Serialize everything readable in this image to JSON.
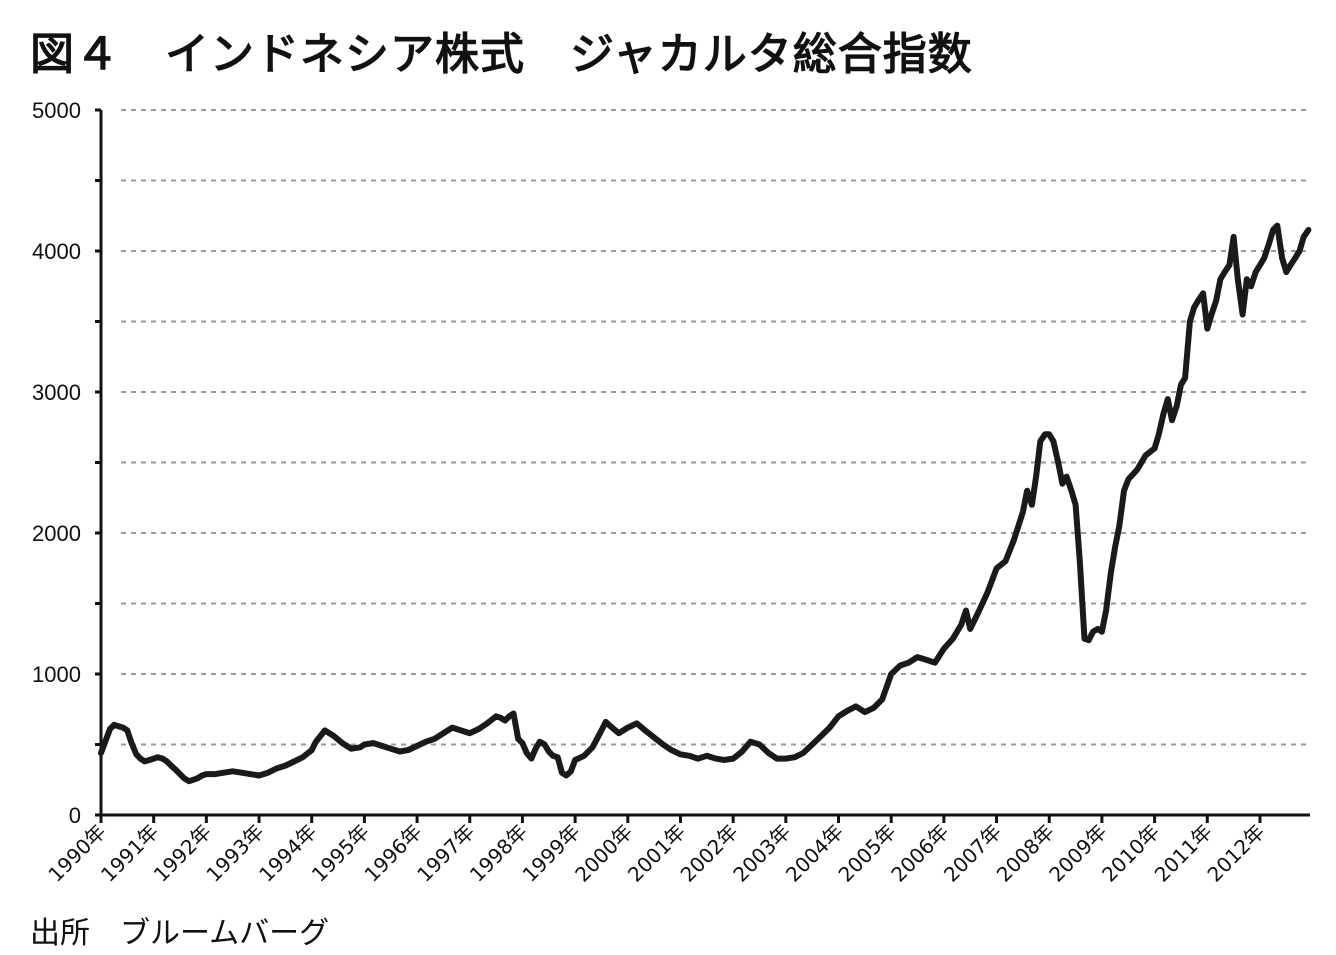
{
  "title": "図４　インドネシア株式　ジャカルタ総合指数",
  "source": "出所　ブルームバーグ",
  "chart_data": {
    "type": "line",
    "title": "図４　インドネシア株式　ジャカルタ総合指数",
    "xlabel": "",
    "ylabel": "",
    "ylim": [
      0,
      5000
    ],
    "xlim": [
      1990.0,
      2012.95
    ],
    "yticks": [
      0,
      1000,
      2000,
      3000,
      4000,
      5000
    ],
    "ytick_labels": [
      "0",
      "1000",
      "2000",
      "3000",
      "4000",
      "5000"
    ],
    "xticks": [
      1990,
      1991,
      1992,
      1993,
      1994,
      1995,
      1996,
      1997,
      1998,
      1999,
      2000,
      2001,
      2002,
      2003,
      2004,
      2005,
      2006,
      2007,
      2008,
      2009,
      2010,
      2011,
      2012
    ],
    "xtick_labels": [
      "1990年",
      "1991年",
      "1992年",
      "1993年",
      "1994年",
      "1995年",
      "1996年",
      "1997年",
      "1998年",
      "1999年",
      "2000年",
      "2001年",
      "2002年",
      "2003年",
      "2004年",
      "2005年",
      "2006年",
      "2007年",
      "2008年",
      "2009年",
      "2010年",
      "2011年",
      "2012年"
    ],
    "grid": "horizontal-dashed",
    "line_color": "#1a1a1a",
    "series": [
      {
        "x": [
          1990.0,
          1990.08,
          1990.17,
          1990.25,
          1990.33,
          1990.42,
          1990.5,
          1990.58,
          1990.67,
          1990.75,
          1990.83,
          1990.92,
          1991.0,
          1991.08,
          1991.17,
          1991.25,
          1991.33,
          1991.42,
          1991.5,
          1991.58,
          1991.67,
          1991.75,
          1991.83,
          1991.92,
          1992.0,
          1992.17,
          1992.33,
          1992.5,
          1992.67,
          1992.83,
          1993.0,
          1993.17,
          1993.33,
          1993.5,
          1993.67,
          1993.83,
          1994.0,
          1994.08,
          1994.25,
          1994.42,
          1994.58,
          1994.75,
          1994.92,
          1995.0,
          1995.17,
          1995.33,
          1995.5,
          1995.67,
          1995.83,
          1996.0,
          1996.17,
          1996.33,
          1996.5,
          1996.67,
          1996.83,
          1997.0,
          1997.17,
          1997.33,
          1997.5,
          1997.58,
          1997.67,
          1997.75,
          1997.83,
          1997.92,
          1998.0,
          1998.08,
          1998.17,
          1998.25,
          1998.33,
          1998.42,
          1998.5,
          1998.58,
          1998.67,
          1998.75,
          1998.83,
          1998.92,
          1999.0,
          1999.17,
          1999.33,
          1999.5,
          1999.58,
          1999.67,
          1999.83,
          2000.0,
          2000.17,
          2000.33,
          2000.5,
          2000.67,
          2000.83,
          2001.0,
          2001.17,
          2001.33,
          2001.5,
          2001.67,
          2001.83,
          2002.0,
          2002.17,
          2002.33,
          2002.5,
          2002.67,
          2002.83,
          2003.0,
          2003.17,
          2003.33,
          2003.5,
          2003.67,
          2003.83,
          2004.0,
          2004.17,
          2004.33,
          2004.5,
          2004.67,
          2004.83,
          2005.0,
          2005.17,
          2005.33,
          2005.5,
          2005.67,
          2005.83,
          2006.0,
          2006.17,
          2006.33,
          2006.42,
          2006.5,
          2006.67,
          2006.83,
          2007.0,
          2007.17,
          2007.33,
          2007.5,
          2007.58,
          2007.67,
          2007.75,
          2007.83,
          2007.92,
          2008.0,
          2008.08,
          2008.17,
          2008.25,
          2008.33,
          2008.42,
          2008.5,
          2008.58,
          2008.67,
          2008.75,
          2008.83,
          2008.92,
          2009.0,
          2009.08,
          2009.17,
          2009.25,
          2009.33,
          2009.42,
          2009.5,
          2009.67,
          2009.83,
          2010.0,
          2010.08,
          2010.17,
          2010.25,
          2010.33,
          2010.42,
          2010.5,
          2010.58,
          2010.67,
          2010.75,
          2010.83,
          2010.92,
          2011.0,
          2011.08,
          2011.17,
          2011.25,
          2011.33,
          2011.42,
          2011.5,
          2011.58,
          2011.67,
          2011.75,
          2011.83,
          2011.92,
          2012.0,
          2012.08,
          2012.17,
          2012.25,
          2012.33,
          2012.42,
          2012.5,
          2012.58,
          2012.67,
          2012.75,
          2012.83,
          2012.92
        ],
        "y": [
          440,
          520,
          610,
          640,
          630,
          620,
          600,
          510,
          430,
          400,
          380,
          390,
          400,
          410,
          400,
          380,
          350,
          320,
          290,
          260,
          240,
          250,
          260,
          280,
          290,
          290,
          300,
          310,
          300,
          290,
          280,
          300,
          330,
          350,
          380,
          410,
          460,
          520,
          600,
          560,
          510,
          470,
          480,
          500,
          510,
          490,
          470,
          450,
          460,
          490,
          520,
          540,
          580,
          620,
          600,
          580,
          610,
          650,
          700,
          690,
          670,
          700,
          720,
          540,
          510,
          440,
          400,
          470,
          520,
          500,
          450,
          420,
          410,
          300,
          280,
          310,
          390,
          420,
          480,
          600,
          660,
          630,
          580,
          620,
          650,
          600,
          550,
          500,
          460,
          430,
          420,
          400,
          420,
          400,
          390,
          400,
          450,
          520,
          500,
          440,
          400,
          400,
          410,
          440,
          500,
          560,
          620,
          700,
          740,
          770,
          730,
          760,
          820,
          1000,
          1060,
          1080,
          1120,
          1100,
          1080,
          1180,
          1250,
          1350,
          1450,
          1320,
          1450,
          1580,
          1750,
          1800,
          1950,
          2150,
          2300,
          2200,
          2400,
          2650,
          2700,
          2700,
          2650,
          2500,
          2350,
          2400,
          2300,
          2200,
          1800,
          1250,
          1240,
          1300,
          1320,
          1300,
          1450,
          1720,
          1900,
          2050,
          2300,
          2380,
          2450,
          2550,
          2600,
          2700,
          2850,
          2950,
          2800,
          2900,
          3050,
          3100,
          3500,
          3600,
          3650,
          3700,
          3450,
          3550,
          3650,
          3800,
          3850,
          3900,
          4100,
          3800,
          3550,
          3800,
          3750,
          3850,
          3900,
          3950,
          4050,
          4150,
          4180,
          3950,
          3850,
          3900,
          3950,
          4000,
          4100,
          4150
        ]
      }
    ]
  }
}
